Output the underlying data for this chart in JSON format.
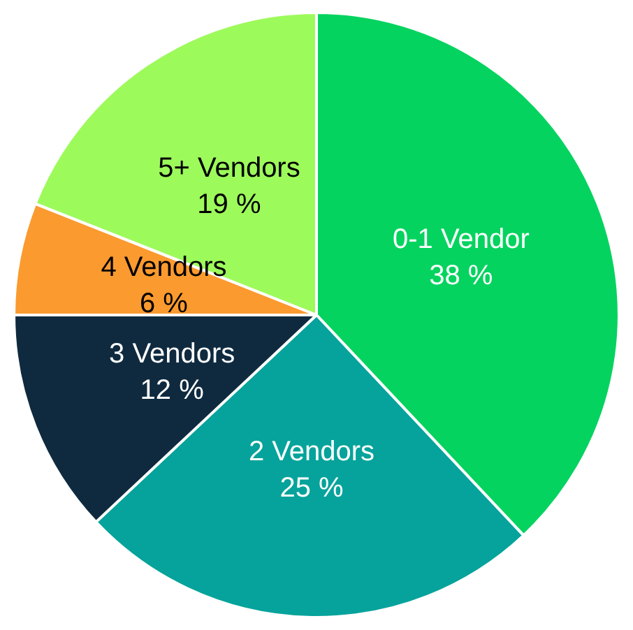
{
  "chart_data": {
    "type": "pie",
    "categories": [
      "0-1 Vendor",
      "2 Vendors",
      "3 Vendors",
      "4 Vendors",
      "5+ Vendors"
    ],
    "values": [
      38,
      25,
      12,
      6,
      19
    ],
    "colors": [
      "#05d35f",
      "#05a39b",
      "#0f2a3f",
      "#fb9a2e",
      "#9dfa5b"
    ],
    "value_labels": [
      "38 %",
      "25 %",
      "12 %",
      "6 %",
      "19 %"
    ],
    "legend": false
  }
}
